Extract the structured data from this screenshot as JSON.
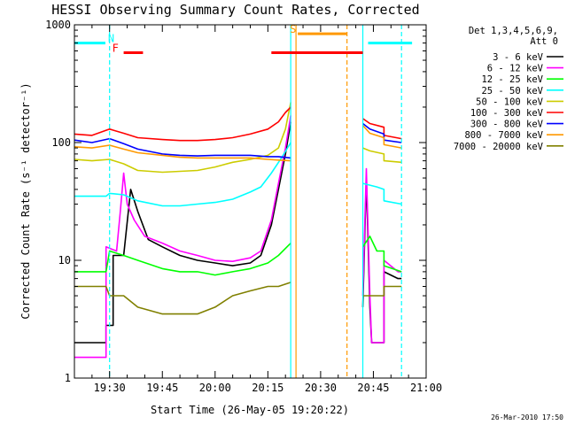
{
  "chart_data": {
    "type": "line",
    "title": "HESSI Observing Summary Count Rates, Corrected",
    "xlabel": "Start Time (26-May-05 19:20:22)",
    "ylabel": "Corrected Count Rate (s⁻¹ detector⁻¹)",
    "x_axis": {
      "unit": "minutes since 19:20",
      "range": [
        0,
        100
      ],
      "ticks": [
        {
          "v": 10,
          "label": "19:30"
        },
        {
          "v": 25,
          "label": "19:45"
        },
        {
          "v": 40,
          "label": "20:00"
        },
        {
          "v": 55,
          "label": "20:15"
        },
        {
          "v": 70,
          "label": "20:30"
        },
        {
          "v": 85,
          "label": "20:45"
        },
        {
          "v": 100,
          "label": "21:00"
        }
      ]
    },
    "y_axis": {
      "scale": "log",
      "range": [
        1,
        1000
      ],
      "ticks": [
        {
          "v": 1,
          "label": "1"
        },
        {
          "v": 10,
          "label": "10"
        },
        {
          "v": 100,
          "label": "100"
        },
        {
          "v": 1000,
          "label": "1000"
        }
      ]
    },
    "legend": {
      "placement": "right",
      "header": [
        "Det 1,3,4,5,6,9,",
        "Att 0"
      ]
    },
    "series": [
      {
        "name": "3 - 6 keV",
        "color": "#000000",
        "points": [
          [
            -2,
            2
          ],
          [
            9,
            2
          ],
          [
            9,
            2.8
          ],
          [
            11,
            2.8
          ],
          [
            11,
            11
          ],
          [
            14,
            11
          ],
          [
            16,
            40
          ],
          [
            18,
            26
          ],
          [
            21,
            15
          ],
          [
            25,
            13
          ],
          [
            30,
            11
          ],
          [
            35,
            10
          ],
          [
            40,
            9.5
          ],
          [
            45,
            9
          ],
          [
            50,
            9.5
          ],
          [
            53,
            11
          ],
          [
            56,
            20
          ],
          [
            58,
            40
          ],
          [
            60,
            80
          ],
          [
            61.5,
            150
          ],
          null,
          [
            82,
            4
          ],
          [
            83,
            50
          ],
          [
            84,
            4
          ],
          [
            84.5,
            2
          ],
          [
            88,
            2
          ],
          [
            88,
            8
          ],
          [
            92,
            7
          ],
          [
            93,
            7
          ]
        ]
      },
      {
        "name": "6 - 12 keV",
        "color": "#ff00ff",
        "points": [
          [
            -2,
            1.5
          ],
          [
            9,
            1.5
          ],
          [
            9,
            13
          ],
          [
            12,
            12
          ],
          [
            13,
            25
          ],
          [
            14,
            55
          ],
          [
            15,
            30
          ],
          [
            17,
            22
          ],
          [
            20,
            16
          ],
          [
            25,
            14
          ],
          [
            30,
            12
          ],
          [
            35,
            11
          ],
          [
            40,
            10
          ],
          [
            45,
            9.8
          ],
          [
            50,
            10.5
          ],
          [
            53,
            12
          ],
          [
            56,
            22
          ],
          [
            58,
            45
          ],
          [
            60,
            90
          ],
          [
            61.5,
            170
          ],
          null,
          [
            82,
            5
          ],
          [
            83,
            60
          ],
          [
            84,
            5
          ],
          [
            84.5,
            2
          ],
          [
            88,
            2
          ],
          [
            88,
            10
          ],
          [
            92,
            8
          ],
          [
            93,
            8
          ]
        ]
      },
      {
        "name": "12 - 25 keV",
        "color": "#00ff00",
        "points": [
          [
            -2,
            8
          ],
          [
            9,
            8
          ],
          [
            10,
            12
          ],
          [
            14,
            11
          ],
          [
            18,
            10
          ],
          [
            25,
            8.5
          ],
          [
            30,
            8
          ],
          [
            35,
            8
          ],
          [
            40,
            7.5
          ],
          [
            45,
            8
          ],
          [
            50,
            8.5
          ],
          [
            55,
            9.5
          ],
          [
            58,
            11
          ],
          [
            61.5,
            14
          ],
          null,
          [
            82,
            13
          ],
          [
            84,
            16
          ],
          [
            86,
            12
          ],
          [
            88,
            12
          ],
          [
            88,
            9
          ],
          [
            93,
            8
          ]
        ]
      },
      {
        "name": "25 - 50 keV",
        "color": "#00ffff",
        "points": [
          [
            -2,
            35
          ],
          [
            9,
            35
          ],
          [
            10,
            37
          ],
          [
            14,
            36
          ],
          [
            18,
            32
          ],
          [
            25,
            29
          ],
          [
            30,
            29
          ],
          [
            35,
            30
          ],
          [
            40,
            31
          ],
          [
            45,
            33
          ],
          [
            50,
            38
          ],
          [
            53,
            42
          ],
          [
            56,
            55
          ],
          [
            59,
            75
          ],
          [
            61.5,
            100
          ],
          null,
          [
            82,
            45
          ],
          [
            86,
            42
          ],
          [
            88,
            40
          ],
          [
            88,
            32
          ],
          [
            93,
            30
          ]
        ]
      },
      {
        "name": "50 - 100 keV",
        "color": "#cccc00",
        "points": [
          [
            -2,
            72
          ],
          [
            5,
            70
          ],
          [
            10,
            72
          ],
          [
            14,
            66
          ],
          [
            18,
            58
          ],
          [
            25,
            56
          ],
          [
            30,
            57
          ],
          [
            35,
            58
          ],
          [
            40,
            62
          ],
          [
            45,
            68
          ],
          [
            50,
            72
          ],
          [
            55,
            78
          ],
          [
            58,
            90
          ],
          [
            60,
            130
          ],
          [
            61.5,
            220
          ],
          null,
          [
            82,
            90
          ],
          [
            84,
            85
          ],
          [
            88,
            80
          ],
          [
            88,
            70
          ],
          [
            93,
            68
          ]
        ]
      },
      {
        "name": "100 - 300 keV",
        "color": "#ff0000",
        "points": [
          [
            -2,
            118
          ],
          [
            5,
            115
          ],
          [
            10,
            130
          ],
          [
            14,
            120
          ],
          [
            18,
            110
          ],
          [
            25,
            106
          ],
          [
            30,
            104
          ],
          [
            35,
            104
          ],
          [
            40,
            106
          ],
          [
            45,
            110
          ],
          [
            50,
            118
          ],
          [
            55,
            130
          ],
          [
            58,
            150
          ],
          [
            60,
            180
          ],
          [
            61.5,
            200
          ],
          null,
          [
            82,
            160
          ],
          [
            84,
            145
          ],
          [
            88,
            135
          ],
          [
            88,
            115
          ],
          [
            93,
            108
          ]
        ]
      },
      {
        "name": "300 - 800 keV",
        "color": "#0000ff",
        "points": [
          [
            -2,
            105
          ],
          [
            5,
            100
          ],
          [
            10,
            108
          ],
          [
            14,
            98
          ],
          [
            18,
            88
          ],
          [
            25,
            80
          ],
          [
            30,
            78
          ],
          [
            35,
            77
          ],
          [
            40,
            78
          ],
          [
            45,
            78
          ],
          [
            50,
            78
          ],
          [
            55,
            76
          ],
          [
            58,
            76
          ],
          [
            61.5,
            74
          ],
          null,
          [
            82,
            145
          ],
          [
            84,
            130
          ],
          [
            88,
            118
          ],
          [
            88,
            105
          ],
          [
            93,
            100
          ]
        ]
      },
      {
        "name": "800 - 7000 keV",
        "color": "#ff9900",
        "points": [
          [
            -2,
            92
          ],
          [
            5,
            90
          ],
          [
            10,
            95
          ],
          [
            14,
            88
          ],
          [
            18,
            82
          ],
          [
            25,
            78
          ],
          [
            30,
            75
          ],
          [
            35,
            74
          ],
          [
            40,
            74
          ],
          [
            45,
            74
          ],
          [
            50,
            74
          ],
          [
            55,
            72
          ],
          [
            58,
            71
          ],
          [
            61.5,
            70
          ],
          null,
          [
            82,
            140
          ],
          [
            84,
            120
          ],
          [
            88,
            110
          ],
          [
            88,
            96
          ],
          [
            93,
            90
          ]
        ]
      },
      {
        "name": "7000 - 20000 keV",
        "color": "#808000",
        "points": [
          [
            -2,
            6
          ],
          [
            9,
            6
          ],
          [
            10,
            5
          ],
          [
            14,
            5
          ],
          [
            18,
            4
          ],
          [
            25,
            3.5
          ],
          [
            30,
            3.5
          ],
          [
            35,
            3.5
          ],
          [
            40,
            4
          ],
          [
            45,
            5
          ],
          [
            50,
            5.5
          ],
          [
            55,
            6
          ],
          [
            58,
            6
          ],
          [
            61.5,
            6.5
          ],
          null,
          [
            82,
            5
          ],
          [
            84,
            5
          ],
          [
            88,
            5
          ],
          [
            88,
            6
          ],
          [
            93,
            6
          ]
        ]
      }
    ],
    "annotations": [
      {
        "kind": "vline",
        "x": 10,
        "color": "#00ffff",
        "style": "dashed"
      },
      {
        "kind": "vline",
        "x": 61.5,
        "color": "#00ffff",
        "style": "solid"
      },
      {
        "kind": "vline",
        "x": 82,
        "color": "#00ffff",
        "style": "solid"
      },
      {
        "kind": "vline",
        "x": 93,
        "color": "#00ffff",
        "style": "dashed"
      },
      {
        "kind": "vline",
        "x": 63,
        "color": "#ff9900",
        "style": "solid"
      },
      {
        "kind": "vline",
        "x": 77.5,
        "color": "#ff9900",
        "style": "dashed"
      },
      {
        "kind": "hbar",
        "x0": -2,
        "x1": 8.8,
        "y": 700,
        "color": "#00ffff",
        "label": "N"
      },
      {
        "kind": "hbar",
        "x0": 83.5,
        "x1": 96,
        "y": 700,
        "color": "#00ffff",
        "label": ""
      },
      {
        "kind": "hbar",
        "x0": 14,
        "x1": 19.5,
        "y": 580,
        "color": "#ff0000",
        "label": "F"
      },
      {
        "kind": "hbar",
        "x0": 56,
        "x1": 82,
        "y": 580,
        "color": "#ff0000",
        "label": ""
      },
      {
        "kind": "hbar",
        "x0": 63.5,
        "x1": 77.5,
        "y": 840,
        "color": "#ff9900",
        "label": "S"
      }
    ],
    "footer": "26-Mar-2010 17:50"
  }
}
